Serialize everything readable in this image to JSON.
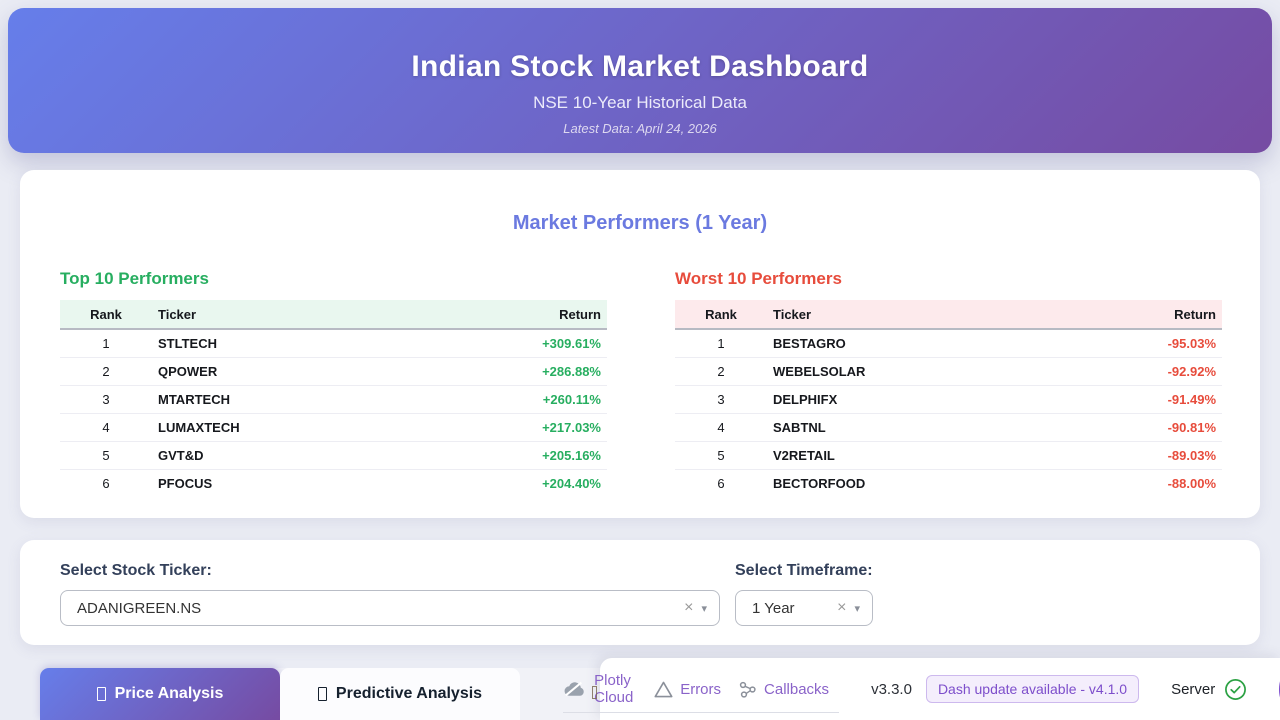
{
  "header": {
    "title": "Indian Stock Market Dashboard",
    "subtitle": "NSE 10-Year Historical Data",
    "latest": "Latest Data: April 24, 2026"
  },
  "market": {
    "title": "Market Performers (1 Year)",
    "top": {
      "title": "Top 10 Performers",
      "columns": {
        "rank": "Rank",
        "ticker": "Ticker",
        "return": "Return"
      },
      "rows": [
        {
          "rank": "1",
          "ticker": "STLTECH",
          "return": "+309.61%"
        },
        {
          "rank": "2",
          "ticker": "QPOWER",
          "return": "+286.88%"
        },
        {
          "rank": "3",
          "ticker": "MTARTECH",
          "return": "+260.11%"
        },
        {
          "rank": "4",
          "ticker": "LUMAXTECH",
          "return": "+217.03%"
        },
        {
          "rank": "5",
          "ticker": "GVT&D",
          "return": "+205.16%"
        },
        {
          "rank": "6",
          "ticker": "PFOCUS",
          "return": "+204.40%"
        }
      ]
    },
    "worst": {
      "title": "Worst 10 Performers",
      "columns": {
        "rank": "Rank",
        "ticker": "Ticker",
        "return": "Return"
      },
      "rows": [
        {
          "rank": "1",
          "ticker": "BESTAGRO",
          "return": "-95.03%"
        },
        {
          "rank": "2",
          "ticker": "WEBELSOLAR",
          "return": "-92.92%"
        },
        {
          "rank": "3",
          "ticker": "DELPHIFX",
          "return": "-91.49%"
        },
        {
          "rank": "4",
          "ticker": "SABTNL",
          "return": "-90.81%"
        },
        {
          "rank": "5",
          "ticker": "V2RETAIL",
          "return": "-89.03%"
        },
        {
          "rank": "6",
          "ticker": "BECTORFOOD",
          "return": "-88.00%"
        }
      ]
    }
  },
  "controls": {
    "ticker_label": "Select Stock Ticker:",
    "ticker_value": "ADANIGREEN.NS",
    "timeframe_label": "Select Timeframe:",
    "timeframe_value": "1 Year"
  },
  "tabs": {
    "price": {
      "label": "Price Analysis",
      "active": true
    },
    "predictive": {
      "label": "Predictive Analysis",
      "active": false
    }
  },
  "debug": {
    "plotly_cloud": "Plotly Cloud",
    "errors": "Errors",
    "callbacks": "Callbacks",
    "version": "v3.3.0",
    "update": "Dash update available - v4.1.0",
    "server": "Server"
  },
  "icons": {
    "clear": "×",
    "caret": "▾",
    "forward": "»"
  },
  "colors": {
    "header_gradient_start": "#667eea",
    "header_gradient_end": "#764ba2",
    "positive": "#27ae60",
    "negative": "#e74c3c",
    "section_accent": "#6b7ae0",
    "debug_link": "#8a63c9",
    "page_background": "#eaecf4"
  }
}
